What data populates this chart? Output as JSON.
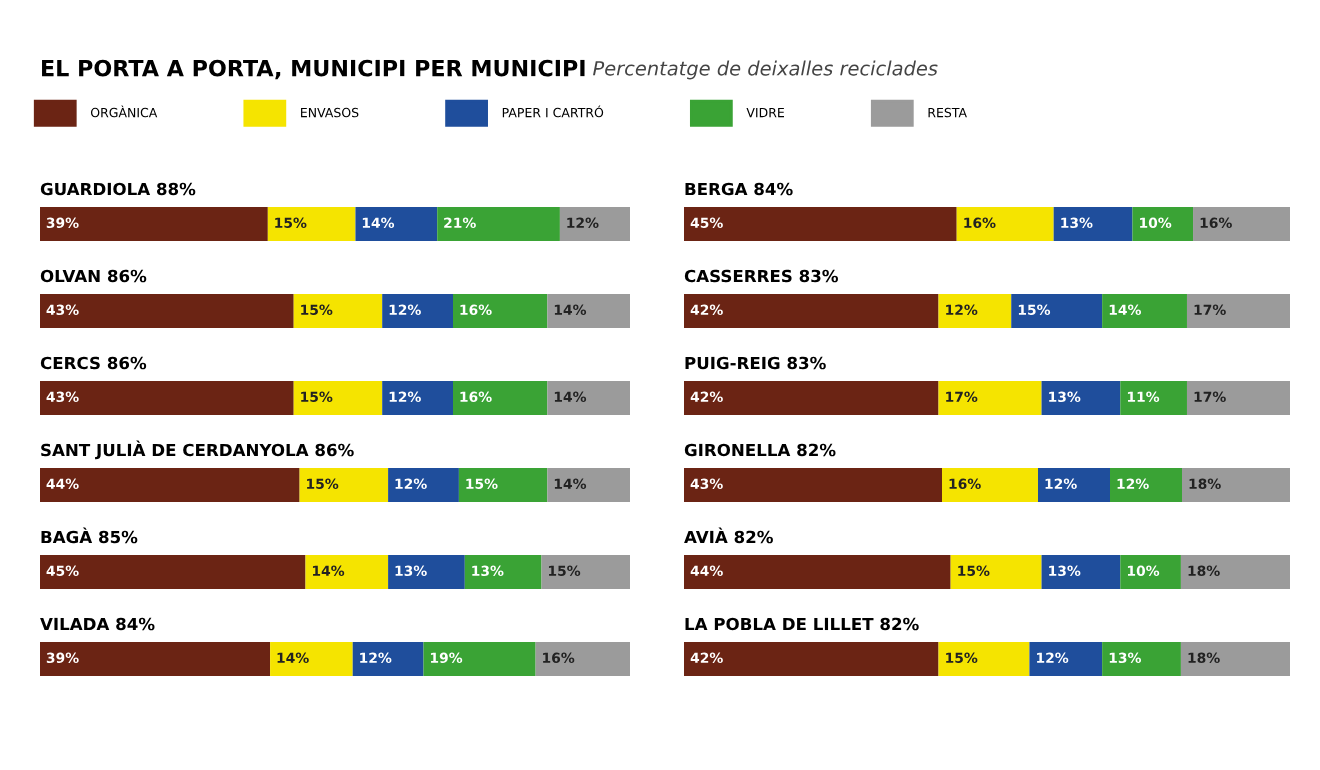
{
  "chart_data": [
    {
      "type": "other",
      "title": "EL PORTA A PORTA, MUNICIPI PER MUNICIPI",
      "subtitle": "Percentatge de deixalles reciclades"
    },
    {
      "type": "bar",
      "orientation": "horizontal",
      "stacked": true,
      "title": "GUARDIOLA 88%",
      "legend": "top",
      "categories": [
        null
      ],
      "series": [
        {
          "name": "ORGÀNICA",
          "color": "#6b2414",
          "values": [
            39
          ],
          "value_labels": [
            "39%"
          ]
        },
        {
          "name": "ENVASOS",
          "color": "#f5e400",
          "values": [
            15
          ],
          "value_labels": [
            "15%"
          ]
        },
        {
          "name": "PAPER I CARTRÓ",
          "color": "#1f4e9c",
          "values": [
            14
          ],
          "value_labels": [
            "14%"
          ]
        },
        {
          "name": "VIDRE",
          "color": "#3aa335",
          "values": [
            21
          ],
          "value_labels": [
            "21%"
          ]
        },
        {
          "name": "RESTA",
          "color": "#9b9b9b",
          "values": [
            12
          ],
          "value_labels": [
            "12%"
          ]
        }
      ]
    },
    {
      "type": "bar",
      "orientation": "horizontal",
      "stacked": true,
      "title": "OLVAN 86%",
      "categories": [
        null
      ],
      "series": [
        {
          "color": "#6b2414",
          "values": [
            43
          ],
          "value_labels": [
            "43%"
          ]
        },
        {
          "color": "#f5e400",
          "values": [
            15
          ],
          "value_labels": [
            "15%"
          ]
        },
        {
          "color": "#1f4e9c",
          "values": [
            12
          ],
          "value_labels": [
            "12%"
          ]
        },
        {
          "color": "#3aa335",
          "values": [
            16
          ],
          "value_labels": [
            "16%"
          ]
        },
        {
          "color": "#9b9b9b",
          "values": [
            14
          ],
          "value_labels": [
            "14%"
          ]
        }
      ]
    },
    {
      "type": "bar",
      "orientation": "horizontal",
      "stacked": true,
      "title": "CERCS 86%",
      "categories": [
        null
      ],
      "series": [
        {
          "color": "#6b2414",
          "values": [
            43
          ],
          "value_labels": [
            "43%"
          ]
        },
        {
          "color": "#f5e400",
          "values": [
            15
          ],
          "value_labels": [
            "15%"
          ]
        },
        {
          "color": "#1f4e9c",
          "values": [
            12
          ],
          "value_labels": [
            "12%"
          ]
        },
        {
          "color": "#3aa335",
          "values": [
            16
          ],
          "value_labels": [
            "16%"
          ]
        },
        {
          "color": "#9b9b9b",
          "values": [
            14
          ],
          "value_labels": [
            "14%"
          ]
        }
      ]
    },
    {
      "type": "bar",
      "orientation": "horizontal",
      "stacked": true,
      "title": "SANT JULIÀ DE CERDANYOLA 86%",
      "categories": [
        null
      ],
      "series": [
        {
          "color": "#6b2414",
          "values": [
            44
          ],
          "value_labels": [
            "44%"
          ]
        },
        {
          "color": "#f5e400",
          "values": [
            15
          ],
          "value_labels": [
            "15%"
          ]
        },
        {
          "color": "#1f4e9c",
          "values": [
            12
          ],
          "value_labels": [
            "12%"
          ]
        },
        {
          "color": "#3aa335",
          "values": [
            15
          ],
          "value_labels": [
            "15%"
          ]
        },
        {
          "color": "#9b9b9b",
          "values": [
            14
          ],
          "value_labels": [
            "14%"
          ]
        }
      ]
    },
    {
      "type": "bar",
      "orientation": "horizontal",
      "stacked": true,
      "title": "BAGÀ 85%",
      "categories": [
        null
      ],
      "series": [
        {
          "color": "#6b2414",
          "values": [
            45
          ],
          "value_labels": [
            "45%"
          ]
        },
        {
          "color": "#f5e400",
          "values": [
            14
          ],
          "value_labels": [
            "14%"
          ]
        },
        {
          "color": "#1f4e9c",
          "values": [
            13
          ],
          "value_labels": [
            "13%"
          ]
        },
        {
          "color": "#3aa335",
          "values": [
            13
          ],
          "value_labels": [
            "13%"
          ]
        },
        {
          "color": "#9b9b9b",
          "values": [
            15
          ],
          "value_labels": [
            "15%"
          ]
        }
      ]
    },
    {
      "type": "bar",
      "orientation": "horizontal",
      "stacked": true,
      "title": "VILADA 84%",
      "categories": [
        null
      ],
      "series": [
        {
          "color": "#6b2414",
          "values": [
            39
          ],
          "value_labels": [
            "39%"
          ]
        },
        {
          "color": "#f5e400",
          "values": [
            14
          ],
          "value_labels": [
            "14%"
          ]
        },
        {
          "color": "#1f4e9c",
          "values": [
            12
          ],
          "value_labels": [
            "12%"
          ]
        },
        {
          "color": "#3aa335",
          "values": [
            19
          ],
          "value_labels": [
            "19%"
          ]
        },
        {
          "color": "#9b9b9b",
          "values": [
            16
          ],
          "value_labels": [
            "16%"
          ]
        }
      ]
    },
    {
      "type": "bar",
      "orientation": "horizontal",
      "stacked": true,
      "title": "BERGA 84%",
      "categories": [
        null
      ],
      "series": [
        {
          "color": "#6b2414",
          "values": [
            45
          ],
          "value_labels": [
            "45%"
          ]
        },
        {
          "color": "#f5e400",
          "values": [
            16
          ],
          "value_labels": [
            "16%"
          ]
        },
        {
          "color": "#1f4e9c",
          "values": [
            13
          ],
          "value_labels": [
            "13%"
          ]
        },
        {
          "color": "#3aa335",
          "values": [
            10
          ],
          "value_labels": [
            "10%"
          ]
        },
        {
          "color": "#9b9b9b",
          "values": [
            16
          ],
          "value_labels": [
            "16%"
          ]
        }
      ]
    },
    {
      "type": "bar",
      "orientation": "horizontal",
      "stacked": true,
      "title": "CASSERRES 83%",
      "categories": [
        null
      ],
      "series": [
        {
          "color": "#6b2414",
          "values": [
            42
          ],
          "value_labels": [
            "42%"
          ]
        },
        {
          "color": "#f5e400",
          "values": [
            12
          ],
          "value_labels": [
            "12%"
          ]
        },
        {
          "color": "#1f4e9c",
          "values": [
            15
          ],
          "value_labels": [
            "15%"
          ]
        },
        {
          "color": "#3aa335",
          "values": [
            14
          ],
          "value_labels": [
            "14%"
          ]
        },
        {
          "color": "#9b9b9b",
          "values": [
            17
          ],
          "value_labels": [
            "17%"
          ]
        }
      ]
    },
    {
      "type": "bar",
      "orientation": "horizontal",
      "stacked": true,
      "title": "PUIG-REIG 83%",
      "categories": [
        null
      ],
      "series": [
        {
          "color": "#6b2414",
          "values": [
            42
          ],
          "value_labels": [
            "42%"
          ]
        },
        {
          "color": "#f5e400",
          "values": [
            17
          ],
          "value_labels": [
            "17%"
          ]
        },
        {
          "color": "#1f4e9c",
          "values": [
            13
          ],
          "value_labels": [
            "13%"
          ]
        },
        {
          "color": "#3aa335",
          "values": [
            11
          ],
          "value_labels": [
            "11%"
          ]
        },
        {
          "color": "#9b9b9b",
          "values": [
            17
          ],
          "value_labels": [
            "17%"
          ]
        }
      ]
    },
    {
      "type": "bar",
      "orientation": "horizontal",
      "stacked": true,
      "title": "GIRONELLA 82%",
      "categories": [
        null
      ],
      "series": [
        {
          "color": "#6b2414",
          "values": [
            43
          ],
          "value_labels": [
            "43%"
          ]
        },
        {
          "color": "#f5e400",
          "values": [
            16
          ],
          "value_labels": [
            "16%"
          ]
        },
        {
          "color": "#1f4e9c",
          "values": [
            12
          ],
          "value_labels": [
            "12%"
          ]
        },
        {
          "color": "#3aa335",
          "values": [
            12
          ],
          "value_labels": [
            "12%"
          ]
        },
        {
          "color": "#9b9b9b",
          "values": [
            18
          ],
          "value_labels": [
            "18%"
          ]
        }
      ]
    },
    {
      "type": "bar",
      "orientation": "horizontal",
      "stacked": true,
      "title": "AVIÀ 82%",
      "categories": [
        null
      ],
      "series": [
        {
          "color": "#6b2414",
          "values": [
            44
          ],
          "value_labels": [
            "44%"
          ]
        },
        {
          "color": "#f5e400",
          "values": [
            15
          ],
          "value_labels": [
            "15%"
          ]
        },
        {
          "color": "#1f4e9c",
          "values": [
            13
          ],
          "value_labels": [
            "13%"
          ]
        },
        {
          "color": "#3aa335",
          "values": [
            10
          ],
          "value_labels": [
            "10%"
          ]
        },
        {
          "color": "#9b9b9b",
          "values": [
            18
          ],
          "value_labels": [
            "18%"
          ]
        }
      ]
    },
    {
      "type": "bar",
      "orientation": "horizontal",
      "stacked": true,
      "title": "LA POBLA DE LILLET 82%",
      "categories": [
        null
      ],
      "series": [
        {
          "color": "#6b2414",
          "values": [
            42
          ],
          "value_labels": [
            "42%"
          ]
        },
        {
          "color": "#f5e400",
          "values": [
            15
          ],
          "value_labels": [
            "15%"
          ]
        },
        {
          "color": "#1f4e9c",
          "values": [
            12
          ],
          "value_labels": [
            "12%"
          ]
        },
        {
          "color": "#3aa335",
          "values": [
            13
          ],
          "value_labels": [
            "13%"
          ]
        },
        {
          "color": "#9b9b9b",
          "values": [
            18
          ],
          "value_labels": [
            "18%"
          ]
        }
      ]
    }
  ]
}
